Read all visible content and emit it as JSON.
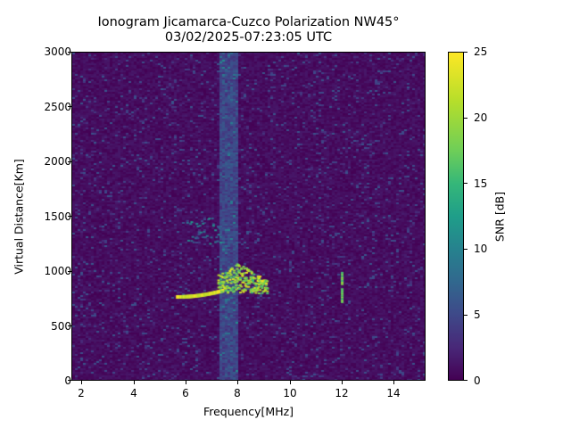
{
  "chart_data": {
    "type": "heatmap",
    "title": "Ionogram Jicamarca-Cuzco Polarization NW45°",
    "subtitle": "03/02/2025-07:23:05 UTC",
    "xlabel": "Frequency[MHz]",
    "ylabel": "Virtual Distance[Km]",
    "xlim": [
      1.6,
      15.2
    ],
    "ylim": [
      0,
      3000
    ],
    "xticks": [
      2,
      4,
      6,
      8,
      10,
      12,
      14
    ],
    "yticks": [
      0,
      500,
      1000,
      1500,
      2000,
      2500,
      3000
    ],
    "colorbar": {
      "label": "SNR [dB]",
      "range": [
        0,
        25
      ],
      "ticks": [
        0,
        5,
        10,
        15,
        20,
        25
      ],
      "colormap": "viridis"
    },
    "grid": false,
    "features": [
      {
        "name": "F-layer trace (low)",
        "freq_range_mhz": [
          5.6,
          7.4
        ],
        "distance_km": [
          760,
          820
        ],
        "snr_db": 25
      },
      {
        "name": "F-layer trace (spread)",
        "freq_range_mhz": [
          7.2,
          9.1
        ],
        "distance_km": [
          800,
          1080
        ],
        "snr_db": [
          15,
          25
        ]
      },
      {
        "name": "weak echo",
        "freq_range_mhz": [
          6.0,
          7.4
        ],
        "distance_km": [
          1250,
          1500
        ],
        "snr_db": [
          5,
          12
        ]
      },
      {
        "name": "interference line",
        "freq_mhz": 12.0,
        "distance_km": [
          720,
          1000
        ],
        "snr_db": [
          15,
          20
        ]
      },
      {
        "name": "interference band",
        "freq_range_mhz": [
          7.2,
          8.0
        ],
        "distance_km": [
          0,
          3000
        ],
        "snr_db": [
          3,
          8
        ]
      }
    ]
  },
  "labels": {
    "title": "Ionogram Jicamarca-Cuzco Polarization NW45°",
    "subtitle": "03/02/2025-07:23:05 UTC",
    "xlabel": "Frequency[MHz]",
    "ylabel": "Virtual Distance[Km]",
    "cblabel": "SNR [dB]"
  },
  "ticks": {
    "y": [
      "3000",
      "2500",
      "2000",
      "1500",
      "1000",
      "500",
      "0"
    ],
    "x": [
      "2",
      "4",
      "6",
      "8",
      "10",
      "12",
      "14"
    ],
    "cb": [
      "25",
      "20",
      "15",
      "10",
      "5",
      "0"
    ]
  }
}
